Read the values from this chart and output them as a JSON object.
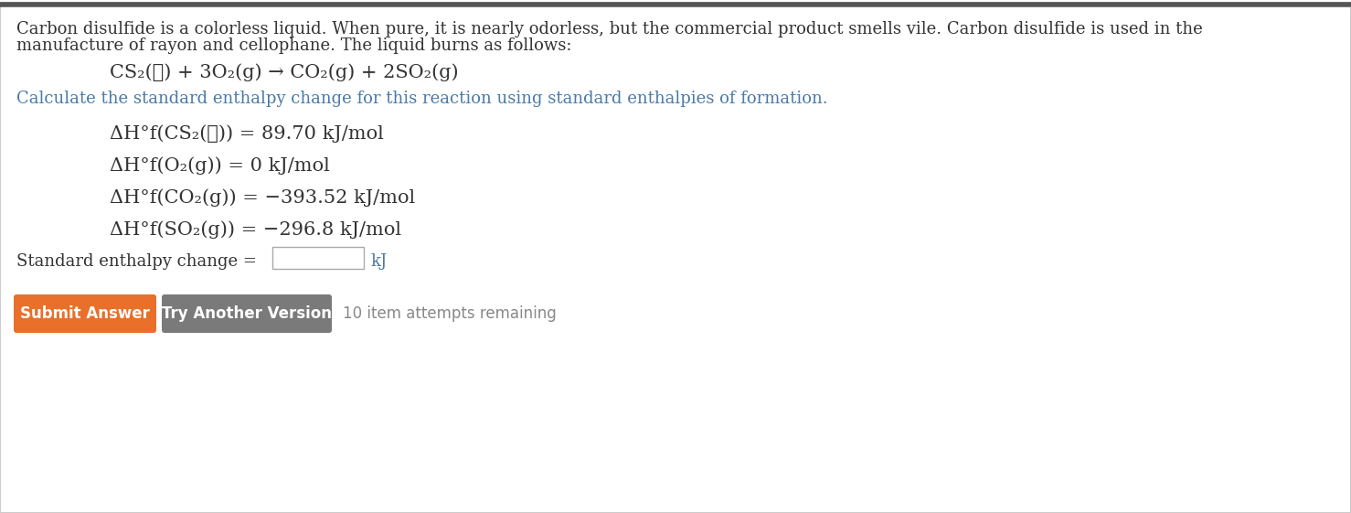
{
  "bg_color": "#ffffff",
  "border_color": "#cccccc",
  "top_bar_color": "#555555",
  "para_line1": "Carbon disulfide is a colorless liquid. When pure, it is nearly odorless, but the commercial product smells vile. Carbon disulfide is used in the",
  "para_line2": "manufacture of rayon and cellophane. The liquid burns as follows:",
  "equation": "CS₂(ℓ) + 3O₂(g) → CO₂(g) + 2SO₂(g)",
  "instruction": "Calculate the standard enthalpy change for this reaction using standard enthalpies of formation.",
  "enthalpy_lines": [
    "ΔH°f(CS₂(ℓ)) = 89.70 kJ/mol",
    "ΔH°f(O₂(g)) = 0 kJ/mol",
    "ΔH°f(CO₂(g)) = −393.52 kJ/mol",
    "ΔH°f(SO₂(g)) = −296.8 kJ/mol"
  ],
  "input_label": "Standard enthalpy change =",
  "input_unit": "kJ",
  "btn1_text": "Submit Answer",
  "btn1_color": "#e8702a",
  "btn2_text": "Try Another Version",
  "btn2_color": "#7a7a7a",
  "attempts_text": "10 item attempts remaining",
  "text_color": "#333333",
  "link_color": "#4a7aa7",
  "font_size_body": 13,
  "font_size_eq": 15,
  "font_size_enthalpy": 15,
  "font_size_btn": 12
}
